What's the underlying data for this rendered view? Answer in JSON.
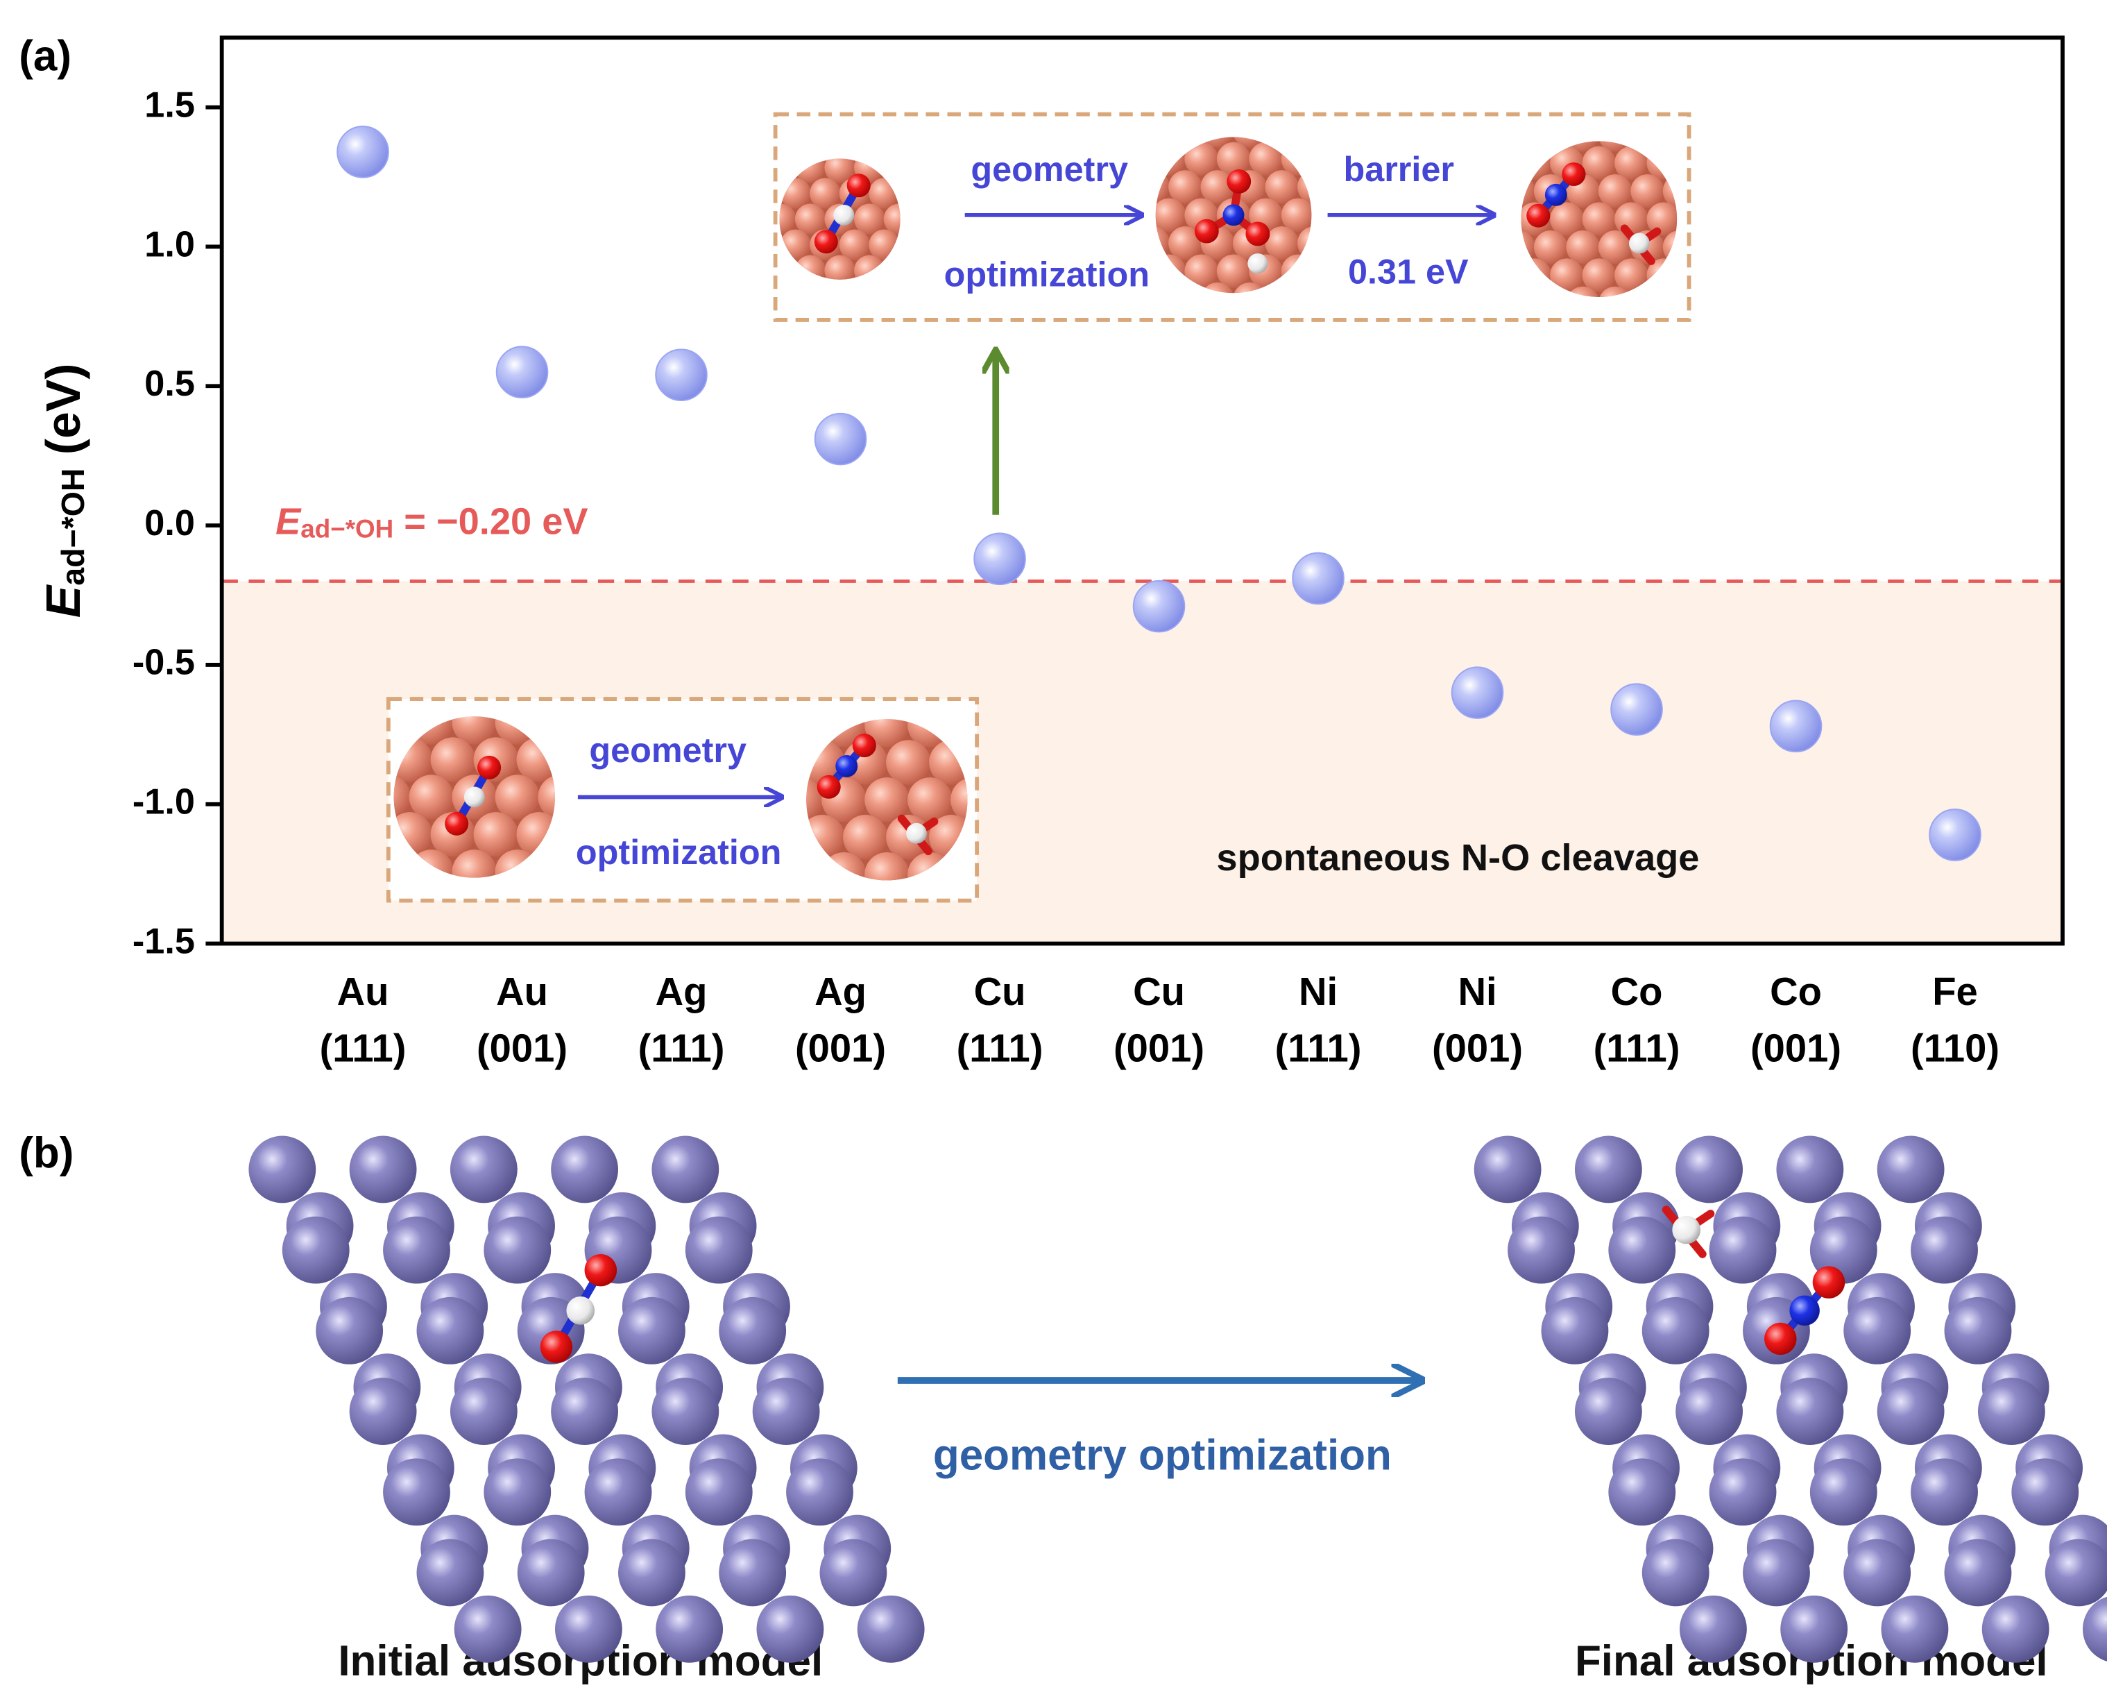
{
  "chart_data": {
    "type": "scatter",
    "panel_labels": [
      "(a)",
      "(b)"
    ],
    "y_label": {
      "symbol": "E",
      "subscript": "ad−*OH",
      "unit": " (eV)"
    },
    "categories": [
      [
        "Au",
        "(111)"
      ],
      [
        "Au",
        "(001)"
      ],
      [
        "Ag",
        "(111)"
      ],
      [
        "Ag",
        "(001)"
      ],
      [
        "Cu",
        "(111)"
      ],
      [
        "Cu",
        "(001)"
      ],
      [
        "Ni",
        "(111)"
      ],
      [
        "Ni",
        "(001)"
      ],
      [
        "Co",
        "(111)"
      ],
      [
        "Co",
        "(001)"
      ],
      [
        "Fe",
        "(110)"
      ]
    ],
    "values": [
      1.34,
      0.55,
      0.54,
      0.31,
      -0.12,
      -0.29,
      -0.19,
      -0.6,
      -0.66,
      -0.72,
      -1.11
    ],
    "color": "#9aa4f2",
    "ylim": [
      -1.5,
      1.75
    ],
    "yticks": [
      {
        "value": -1.5,
        "label": "-1.5"
      },
      {
        "value": -1,
        "label": "-1.0"
      },
      -0.5,
      {
        "value": 0,
        "label": "0.0"
      },
      0.5,
      {
        "value": 1,
        "label": "1.0"
      },
      1.5
    ],
    "threshold": {
      "value": -0.2,
      "symbol": "E",
      "subscript": "ad−*OH",
      "label": " = −0.20 eV",
      "color": "#e65a5a",
      "region_color": "#fdf1e8"
    },
    "inset_top": {
      "step1": [
        "geometry",
        "optimization"
      ],
      "step2": [
        "barrier",
        "0.31 eV"
      ]
    },
    "inset_bottom": {
      "step1": [
        "geometry",
        "optimization"
      ]
    },
    "region_annotation": "spontaneous N-O cleavage",
    "panel_b": {
      "arrow_label": "geometry optimization",
      "left_caption": "Initial adsorption model",
      "right_caption": "Final adsorption model"
    }
  }
}
